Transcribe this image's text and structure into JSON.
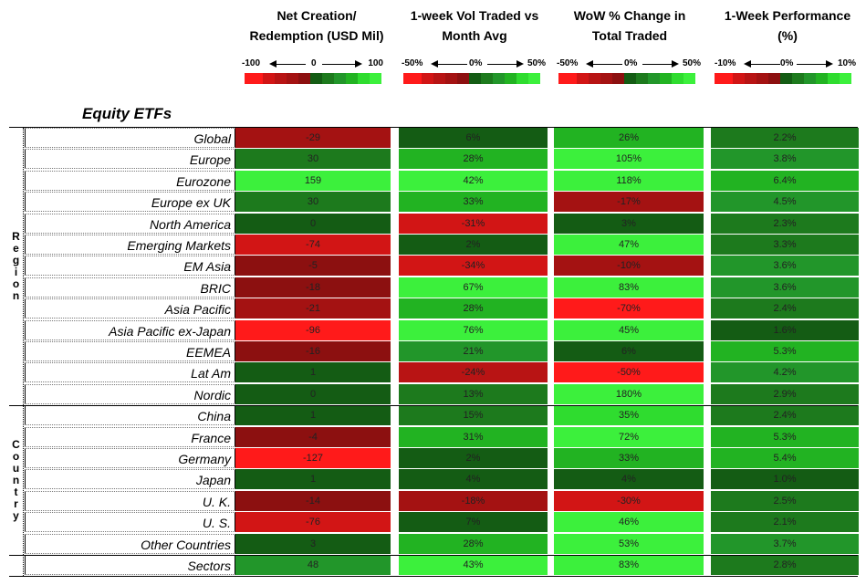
{
  "chart_data": {
    "type": "heatmap",
    "title": "Equity ETFs",
    "columns": [
      {
        "header_line1": "Net Creation/",
        "header_line2": "Redemption (USD Mil)",
        "scale_lo": "-100",
        "scale_mid": "0",
        "scale_hi": "100"
      },
      {
        "header_line1": "1-week Vol Traded vs",
        "header_line2": "Month Avg",
        "scale_lo": "-50%",
        "scale_mid": "0%",
        "scale_hi": "50%"
      },
      {
        "header_line1": "WoW % Change in",
        "header_line2": "Total Traded",
        "scale_lo": "-50%",
        "scale_mid": "0%",
        "scale_hi": "50%"
      },
      {
        "header_line1": "1-Week Performance",
        "header_line2": "(%)",
        "scale_lo": "-10%",
        "scale_mid": "0%",
        "scale_hi": "10%"
      }
    ],
    "groups": [
      {
        "label": "Region",
        "rows": [
          "Global",
          "Europe",
          "Eurozone",
          "Europe ex UK",
          "North America",
          "Emerging Markets",
          "EM Asia",
          "BRIC",
          "Asia Pacific",
          "Asia Pacific ex-Japan",
          "EEMEA",
          "Lat Am",
          "Nordic"
        ]
      },
      {
        "label": "Country",
        "rows": [
          "China",
          "France",
          "Germany",
          "Japan",
          "U. K.",
          "U. S.",
          "Other Countries"
        ]
      },
      {
        "label": "",
        "rows": [
          "Sectors"
        ]
      }
    ],
    "rows": [
      {
        "name": "Global",
        "values": [
          "-29",
          "6%",
          "26%",
          "2.2%"
        ],
        "nums": [
          -29,
          6,
          26,
          2.2
        ]
      },
      {
        "name": "Europe",
        "values": [
          "30",
          "28%",
          "105%",
          "3.8%"
        ],
        "nums": [
          30,
          28,
          105,
          3.8
        ]
      },
      {
        "name": "Eurozone",
        "values": [
          "159",
          "42%",
          "118%",
          "6.4%"
        ],
        "nums": [
          159,
          42,
          118,
          6.4
        ]
      },
      {
        "name": "Europe ex UK",
        "values": [
          "30",
          "33%",
          "-17%",
          "4.5%"
        ],
        "nums": [
          30,
          33,
          -17,
          4.5
        ]
      },
      {
        "name": "North America",
        "values": [
          "0",
          "-31%",
          "3%",
          "2.3%"
        ],
        "nums": [
          0,
          -31,
          3,
          2.3
        ]
      },
      {
        "name": "Emerging Markets",
        "values": [
          "-74",
          "2%",
          "47%",
          "3.3%"
        ],
        "nums": [
          -74,
          2,
          47,
          3.3
        ]
      },
      {
        "name": "EM Asia",
        "values": [
          "-5",
          "-34%",
          "-10%",
          "3.6%"
        ],
        "nums": [
          -5,
          -34,
          -10,
          3.6
        ]
      },
      {
        "name": "BRIC",
        "values": [
          "-18",
          "67%",
          "83%",
          "3.6%"
        ],
        "nums": [
          -18,
          67,
          83,
          3.6
        ]
      },
      {
        "name": "Asia Pacific",
        "values": [
          "-21",
          "28%",
          "-70%",
          "2.4%"
        ],
        "nums": [
          -21,
          28,
          -70,
          2.4
        ]
      },
      {
        "name": "Asia Pacific ex-Japan",
        "values": [
          "-96",
          "76%",
          "45%",
          "1.6%"
        ],
        "nums": [
          -96,
          76,
          45,
          1.6
        ]
      },
      {
        "name": "EEMEA",
        "values": [
          "-16",
          "21%",
          "6%",
          "5.3%"
        ],
        "nums": [
          -16,
          21,
          6,
          5.3
        ]
      },
      {
        "name": "Lat Am",
        "values": [
          "1",
          "-24%",
          "-50%",
          "4.2%"
        ],
        "nums": [
          1,
          -24,
          -50,
          4.2
        ]
      },
      {
        "name": "Nordic",
        "values": [
          "0",
          "13%",
          "180%",
          "2.9%"
        ],
        "nums": [
          0,
          13,
          180,
          2.9
        ]
      },
      {
        "name": "China",
        "values": [
          "1",
          "15%",
          "35%",
          "2.4%"
        ],
        "nums": [
          1,
          15,
          35,
          2.4
        ]
      },
      {
        "name": "France",
        "values": [
          "-4",
          "31%",
          "72%",
          "5.3%"
        ],
        "nums": [
          -4,
          31,
          72,
          5.3
        ]
      },
      {
        "name": "Germany",
        "values": [
          "-127",
          "2%",
          "33%",
          "5.4%"
        ],
        "nums": [
          -127,
          2,
          33,
          5.4
        ]
      },
      {
        "name": "Japan",
        "values": [
          "1",
          "4%",
          "4%",
          "1.0%"
        ],
        "nums": [
          1,
          4,
          4,
          1.0
        ]
      },
      {
        "name": "U. K.",
        "values": [
          "-14",
          "-18%",
          "-30%",
          "2.5%"
        ],
        "nums": [
          -14,
          -18,
          -30,
          2.5
        ]
      },
      {
        "name": "U. S.",
        "values": [
          "-76",
          "7%",
          "46%",
          "2.1%"
        ],
        "nums": [
          -76,
          7,
          46,
          2.1
        ]
      },
      {
        "name": "Other Countries",
        "values": [
          "3",
          "28%",
          "53%",
          "3.7%"
        ],
        "nums": [
          3,
          28,
          53,
          3.7
        ]
      },
      {
        "name": "Sectors",
        "values": [
          "48",
          "43%",
          "83%",
          "2.8%"
        ],
        "nums": [
          48,
          43,
          83,
          2.8
        ]
      }
    ]
  },
  "colors": {
    "neg": [
      "#ff1a1a",
      "#d21515",
      "#b81414",
      "#a41212",
      "#8c1010"
    ],
    "pos": [
      "#145c14",
      "#1d7a1d",
      "#22962a",
      "#22b322",
      "#2fdc2f",
      "#3cf03c"
    ]
  }
}
